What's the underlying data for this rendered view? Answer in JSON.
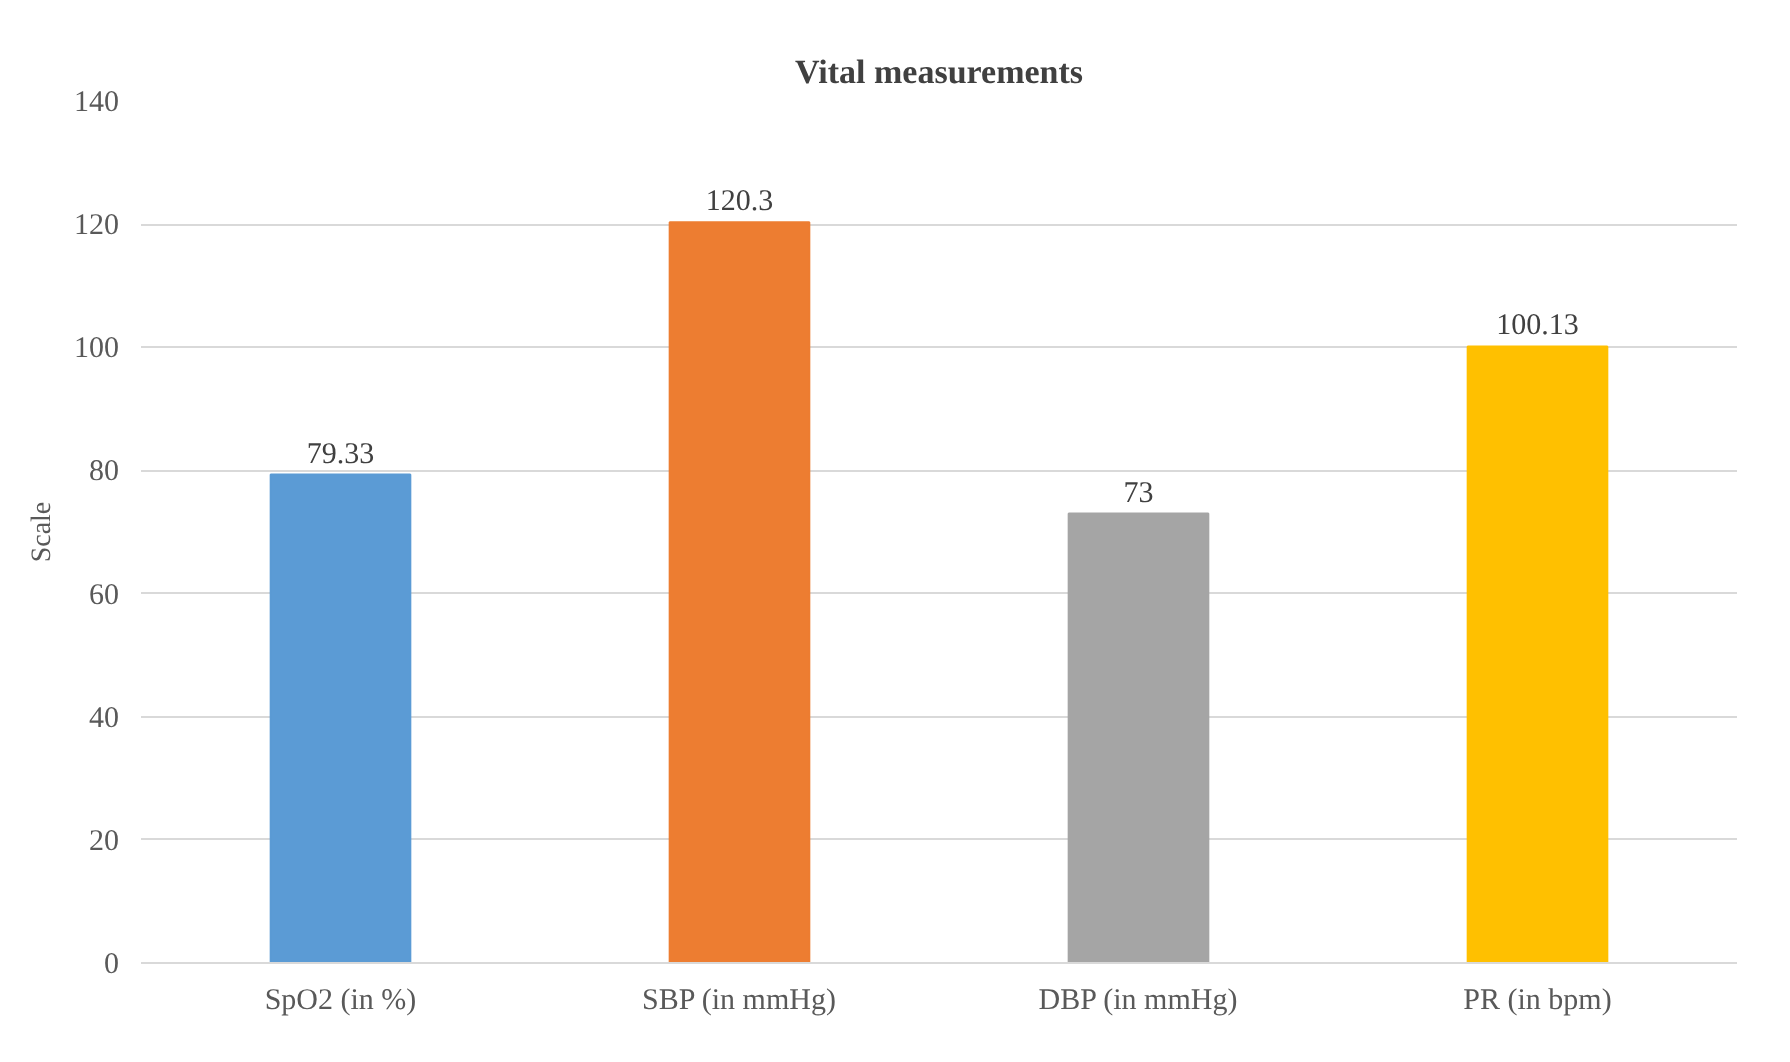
{
  "chart_data": {
    "type": "bar",
    "title": "Vital measurements",
    "ylabel": "Scale",
    "categories": [
      "SpO2 (in %)",
      "SBP (in mmHg)",
      "DBP (in mmHg)",
      "PR (in bpm)"
    ],
    "values": [
      79.33,
      120.3,
      73,
      100.13
    ],
    "colors": [
      "#5b9bd5",
      "#ed7d31",
      "#a5a5a5",
      "#ffc000"
    ],
    "ylim": [
      0,
      140
    ],
    "yticks": [
      0,
      20,
      40,
      60,
      80,
      100,
      120,
      140
    ],
    "grid": "y",
    "data_labels": true
  }
}
